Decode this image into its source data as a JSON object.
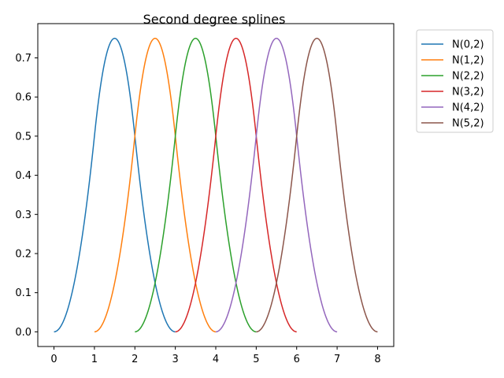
{
  "chart_data": {
    "type": "line",
    "title": "Second degree splines",
    "xlabel": "",
    "ylabel": "",
    "xlim": [
      -0.4,
      8.4
    ],
    "ylim": [
      -0.0375,
      0.7875
    ],
    "xticks": [
      0,
      1,
      2,
      3,
      4,
      5,
      6,
      7,
      8
    ],
    "yticks": [
      0.0,
      0.1,
      0.2,
      0.3,
      0.4,
      0.5,
      0.6,
      0.7
    ],
    "ytick_labels": [
      "0.0",
      "0.1",
      "0.2",
      "0.3",
      "0.4",
      "0.5",
      "0.6",
      "0.7"
    ],
    "grid": false,
    "legend_position": "outside-right-top",
    "sample_points_x": [
      0,
      0.5,
      1,
      1.5,
      2,
      2.5,
      3
    ],
    "series": [
      {
        "name": "N(0,2)",
        "color": "#1f77b4",
        "x": [
          0,
          0.5,
          1,
          1.5,
          2,
          2.5,
          3
        ],
        "y": [
          0,
          0.125,
          0.5,
          0.75,
          0.5,
          0.125,
          0
        ]
      },
      {
        "name": "N(1,2)",
        "color": "#ff7f0e",
        "x": [
          1,
          1.5,
          2,
          2.5,
          3,
          3.5,
          4
        ],
        "y": [
          0,
          0.125,
          0.5,
          0.75,
          0.5,
          0.125,
          0
        ]
      },
      {
        "name": "N(2,2)",
        "color": "#2ca02c",
        "x": [
          2,
          2.5,
          3,
          3.5,
          4,
          4.5,
          5
        ],
        "y": [
          0,
          0.125,
          0.5,
          0.75,
          0.5,
          0.125,
          0
        ]
      },
      {
        "name": "N(3,2)",
        "color": "#d62728",
        "x": [
          3,
          3.5,
          4,
          4.5,
          5,
          5.5,
          6
        ],
        "y": [
          0,
          0.125,
          0.5,
          0.75,
          0.5,
          0.125,
          0
        ]
      },
      {
        "name": "N(4,2)",
        "color": "#9467bd",
        "x": [
          4,
          4.5,
          5,
          5.5,
          6,
          6.5,
          7
        ],
        "y": [
          0,
          0.125,
          0.5,
          0.75,
          0.5,
          0.125,
          0
        ]
      },
      {
        "name": "N(5,2)",
        "color": "#8c564b",
        "x": [
          5,
          5.5,
          6,
          6.5,
          7,
          7.5,
          8
        ],
        "y": [
          0,
          0.125,
          0.5,
          0.75,
          0.5,
          0.125,
          0
        ]
      }
    ]
  }
}
